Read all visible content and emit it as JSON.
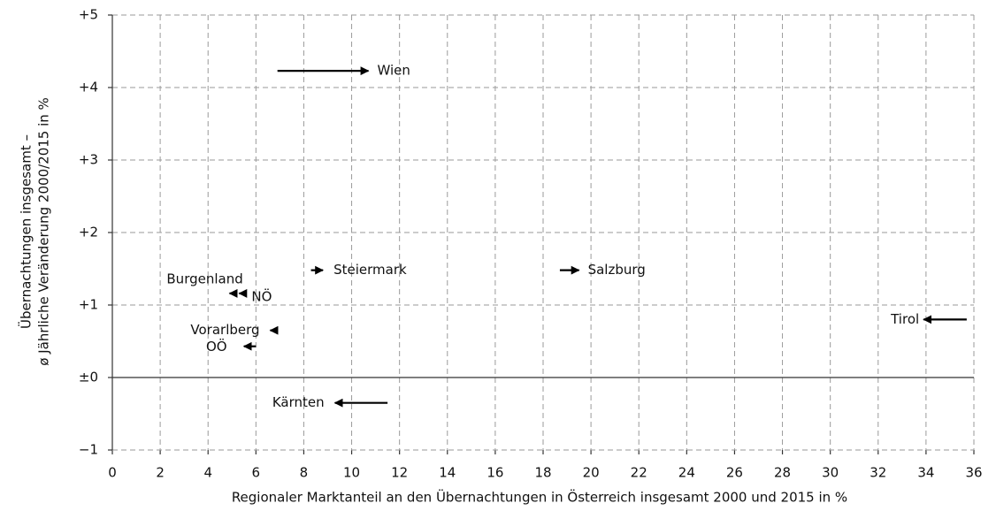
{
  "chart_data": {
    "type": "arrow",
    "xlabel": "Regionaler Marktanteil an den Übernachtungen in Österreich insgesamt 2000 und 2015 in %",
    "ylabel": [
      "Übernachtungen insgesamt –",
      "ø Jährliche Veränderung 2000/2015 in %"
    ],
    "xlim": [
      0,
      36
    ],
    "ylim": [
      -1,
      5
    ],
    "xticks": [
      0,
      2,
      4,
      6,
      8,
      10,
      12,
      14,
      16,
      18,
      20,
      22,
      24,
      26,
      28,
      30,
      32,
      34,
      36
    ],
    "yticks": [
      {
        "value": -1,
        "label": "−1"
      },
      {
        "value": 0,
        "label": "±0"
      },
      {
        "value": 1,
        "label": "+1"
      },
      {
        "value": 2,
        "label": "+2"
      },
      {
        "value": 3,
        "label": "+3"
      },
      {
        "value": 4,
        "label": "+4"
      },
      {
        "value": 5,
        "label": "+5"
      }
    ],
    "grid": true,
    "color": "#000000",
    "names": [
      "Wien",
      "Steiermark",
      "Salzburg",
      "Tirol",
      "Kärnten",
      "Burgenland",
      "NÖ",
      "Vorarlberg",
      "OÖ"
    ],
    "x_start": [
      6.9,
      8.3,
      18.7,
      35.7,
      11.5,
      5.1,
      5.6,
      6.9,
      6.0
    ],
    "x_end": [
      10.7,
      8.8,
      19.5,
      33.9,
      9.3,
      4.9,
      5.3,
      6.6,
      5.5
    ],
    "values": [
      4.23,
      1.48,
      1.48,
      0.8,
      -0.35,
      1.16,
      1.16,
      0.65,
      0.43
    ]
  }
}
